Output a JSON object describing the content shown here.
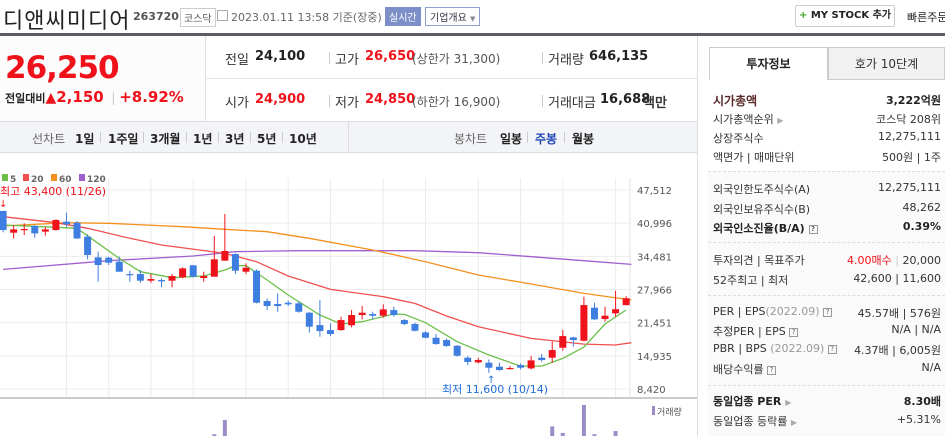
{
  "header": {
    "title": "디앤씨미디어",
    "code": "263720",
    "market": "코스닥",
    "datetime": "2023.01.11 13:58 기준(장중)",
    "realtime": "실시간",
    "company_info": "기업개요",
    "my_stock": "MY STOCK 추가",
    "quick_order": "빠른주문"
  },
  "price": {
    "current": "26,250",
    "change_label": "전일대비",
    "change": "2,150",
    "change_pct": "+8.92%"
  },
  "quote": {
    "prev_label": "전일",
    "prev": "24,100",
    "high_label": "고가",
    "high": "26,650",
    "upper_limit": "(상한가 31,300)",
    "volume_label": "거래량",
    "volume": "646,135",
    "open_label": "시가",
    "open": "24,900",
    "low_label": "저가",
    "low": "24,850",
    "lower_limit": "(하한가 16,900)",
    "amount_label": "거래대금",
    "amount": "16,688",
    "amount_unit": "백만"
  },
  "chart_menu": {
    "line_label": "선차트",
    "line_items": [
      "1일",
      "1주일",
      "3개월",
      "1년",
      "3년",
      "5년",
      "10년"
    ],
    "candle_label": "봉차트",
    "candle_items": [
      "일봉",
      "주봉",
      "월봉"
    ],
    "selected": "주봉"
  },
  "tabs": [
    "투자정보",
    "호가 10단계"
  ],
  "invest": {
    "market_cap": {
      "label": "시가총액",
      "value": "3,222억원"
    },
    "rank": {
      "label": "시가총액순위",
      "value": "코스닥 208위"
    },
    "shares": {
      "label": "상장주식수",
      "value": "12,275,111"
    },
    "par": {
      "label": "액면가 | 매매단위",
      "value": "500원 | 1주"
    },
    "foreign_limit": {
      "label": "외국인한도주식수(A)",
      "value": "12,275,111"
    },
    "foreign_hold": {
      "label": "외국인보유주식수(B)",
      "value": "48,262"
    },
    "foreign_ratio": {
      "label": "외국인소진율(B/A)",
      "value": "0.39%"
    },
    "opinion": {
      "label": "투자의견 | 목표주가",
      "value_opinion": "4.00매수",
      "value_target": "20,000"
    },
    "w52": {
      "label": "52주최고 | 최저",
      "value": "42,600 | 11,600"
    },
    "per": {
      "label": "PER | EPS",
      "period": "(2022.09)",
      "value": "45.57배 | 576원"
    },
    "est_per": {
      "label": "추정PER | EPS",
      "value": "N/A | N/A"
    },
    "pbr": {
      "label": "PBR | BPS",
      "period": "(2022.09)",
      "value": "4.37배 | 6,005원"
    },
    "dividend": {
      "label": "배당수익률",
      "value": "N/A"
    },
    "industry_per": {
      "label": "동일업종 PER",
      "value": "8.30배"
    },
    "industry_chg": {
      "label": "동일업종 등락률",
      "value": "+5.31%"
    }
  },
  "colors": {
    "up": "#f0121a",
    "down": "#3d7ee0",
    "ma5": "#6cc04a",
    "ma20": "#f05050",
    "ma60": "#f59020",
    "ma120": "#a060d0"
  },
  "chart_data": {
    "type": "candlestick",
    "period": "weekly",
    "y_ticks": [
      "47,512",
      "40,996",
      "34,481",
      "27,966",
      "21,451",
      "14,935",
      "8,420"
    ],
    "ylim": [
      8420,
      47512
    ],
    "legend": [
      {
        "name": "5",
        "color": "#6cc04a"
      },
      {
        "name": "20",
        "color": "#f05050"
      },
      {
        "name": "60",
        "color": "#f59020"
      },
      {
        "name": "120",
        "color": "#a060d0"
      }
    ],
    "high_annotation": "최고 43,400 (11/26)",
    "low_annotation": "최저 11,600 (10/14)",
    "volume_label": "거래량",
    "candles_ohlc": [
      [
        43400,
        43400,
        39200,
        39650
      ],
      [
        39130,
        40620,
        38020,
        39780
      ],
      [
        39700,
        40960,
        38670,
        39850
      ],
      [
        40440,
        40630,
        38150,
        38990
      ],
      [
        39330,
        40300,
        38540,
        39780
      ],
      [
        39650,
        41750,
        39520,
        41620
      ],
      [
        41290,
        43060,
        40180,
        40770
      ],
      [
        41090,
        41420,
        37880,
        38000
      ],
      [
        38340,
        38800,
        33890,
        34740
      ],
      [
        34280,
        35400,
        29500,
        32780
      ],
      [
        34220,
        34410,
        32780,
        33230
      ],
      [
        33430,
        34410,
        31460,
        31460
      ],
      [
        31000,
        31660,
        29500,
        30870
      ],
      [
        31000,
        31790,
        29300,
        29700
      ],
      [
        29700,
        31000,
        29300,
        30020
      ],
      [
        29820,
        30150,
        28380,
        29560
      ],
      [
        29700,
        31000,
        28380,
        30610
      ],
      [
        30350,
        32320,
        30150,
        32120
      ],
      [
        32710,
        32770,
        30350,
        30480
      ],
      [
        30220,
        31460,
        29500,
        30610
      ],
      [
        30480,
        38470,
        30480,
        33890
      ],
      [
        33630,
        42800,
        33630,
        35530
      ],
      [
        34930,
        35070,
        31000,
        31660
      ],
      [
        31460,
        33100,
        31000,
        32250
      ],
      [
        31660,
        31920,
        25240,
        25370
      ],
      [
        25700,
        26220,
        23930,
        24720
      ],
      [
        25110,
        27210,
        23600,
        24720
      ],
      [
        25370,
        25770,
        24720,
        25050
      ],
      [
        25240,
        25700,
        23410,
        23600
      ],
      [
        23410,
        23600,
        19480,
        20660
      ],
      [
        20980,
        25900,
        18690,
        19800
      ],
      [
        19990,
        21310,
        18820,
        19220
      ],
      [
        19990,
        22620,
        19860,
        21960
      ],
      [
        20940,
        23930,
        20530,
        22950
      ],
      [
        22950,
        24720,
        22100,
        23410
      ],
      [
        23150,
        23600,
        22100,
        22820
      ],
      [
        22820,
        25050,
        22430,
        24060
      ],
      [
        23930,
        24590,
        22620,
        22950
      ],
      [
        21960,
        22160,
        20980,
        21180
      ],
      [
        21180,
        21440,
        19740,
        19860
      ],
      [
        19540,
        19740,
        18360,
        18490
      ],
      [
        18490,
        19220,
        17120,
        17250
      ],
      [
        18040,
        18360,
        16730,
        16860
      ],
      [
        16920,
        17050,
        14760,
        14960
      ],
      [
        14570,
        14900,
        13120,
        13720
      ],
      [
        13650,
        14570,
        13450,
        14110
      ],
      [
        13580,
        14240,
        11600,
        12600
      ],
      [
        12800,
        13580,
        12010,
        12140
      ],
      [
        12400,
        12930,
        12270,
        12540
      ],
      [
        13120,
        13450,
        12270,
        12600
      ],
      [
        12470,
        14900,
        12270,
        14040
      ],
      [
        14570,
        15290,
        13780,
        14110
      ],
      [
        14570,
        17710,
        13580,
        16070
      ],
      [
        16530,
        20000,
        15940,
        18820
      ],
      [
        18560,
        18690,
        16730,
        18040
      ],
      [
        17900,
        26550,
        17780,
        24910
      ],
      [
        24390,
        25370,
        21960,
        22100
      ],
      [
        22160,
        24590,
        21640,
        22820
      ],
      [
        23280,
        27730,
        22620,
        24100
      ],
      [
        24900,
        26650,
        24850,
        26250
      ]
    ],
    "ma": {
      "5": [
        [
          0,
          40635
        ],
        [
          5,
          40176
        ],
        [
          7,
          39980
        ],
        [
          9,
          37032
        ],
        [
          11,
          34085
        ],
        [
          13,
          31465
        ],
        [
          16,
          30285
        ],
        [
          19,
          30613
        ],
        [
          21,
          31792
        ],
        [
          22,
          32644
        ],
        [
          23,
          32644
        ],
        [
          25,
          29827
        ],
        [
          27,
          26880
        ],
        [
          30,
          22950
        ],
        [
          32,
          21181
        ],
        [
          34,
          21640
        ],
        [
          37,
          23146
        ],
        [
          38,
          23080
        ],
        [
          40,
          21443
        ],
        [
          43,
          17710
        ],
        [
          46,
          15090
        ],
        [
          49,
          12928
        ],
        [
          51,
          12928
        ],
        [
          53,
          14435
        ],
        [
          55,
          16650
        ],
        [
          57,
          21181
        ],
        [
          59,
          23932
        ]
      ],
      "20": [
        [
          0,
          42272
        ],
        [
          5,
          41093
        ],
        [
          8,
          39980
        ],
        [
          12,
          38015
        ],
        [
          15,
          36702
        ],
        [
          21,
          35065
        ],
        [
          24,
          33430
        ],
        [
          27,
          30613
        ],
        [
          31,
          27993
        ],
        [
          36,
          26552
        ],
        [
          39,
          25242
        ],
        [
          42,
          22753
        ],
        [
          45,
          20657
        ],
        [
          50,
          18365
        ],
        [
          55,
          17250
        ],
        [
          58,
          17055
        ],
        [
          59.5,
          17513
        ]
      ],
      "60": [
        [
          0,
          40438
        ],
        [
          6,
          41093
        ],
        [
          10,
          40962
        ],
        [
          17,
          40307
        ],
        [
          21,
          39783
        ],
        [
          25,
          39325
        ],
        [
          29,
          38015
        ],
        [
          35,
          35722
        ],
        [
          40,
          33430
        ],
        [
          45,
          30810
        ],
        [
          50,
          29040
        ],
        [
          55,
          27208
        ],
        [
          59.5,
          25897
        ]
      ],
      "120": [
        [
          0,
          31923
        ],
        [
          10,
          33626
        ],
        [
          18,
          34543
        ],
        [
          22,
          35395
        ],
        [
          28,
          35590
        ],
        [
          39,
          35590
        ],
        [
          45,
          35198
        ],
        [
          50,
          34412
        ],
        [
          55,
          33626
        ],
        [
          59.5,
          32905
        ]
      ]
    },
    "volume_relative": [
      [
        20,
        0.55
      ],
      [
        21,
        0.77
      ],
      [
        52,
        0.67
      ],
      [
        53,
        0.57
      ],
      [
        55,
        1.0
      ],
      [
        56,
        0.55
      ],
      [
        58,
        0.6
      ]
    ]
  }
}
